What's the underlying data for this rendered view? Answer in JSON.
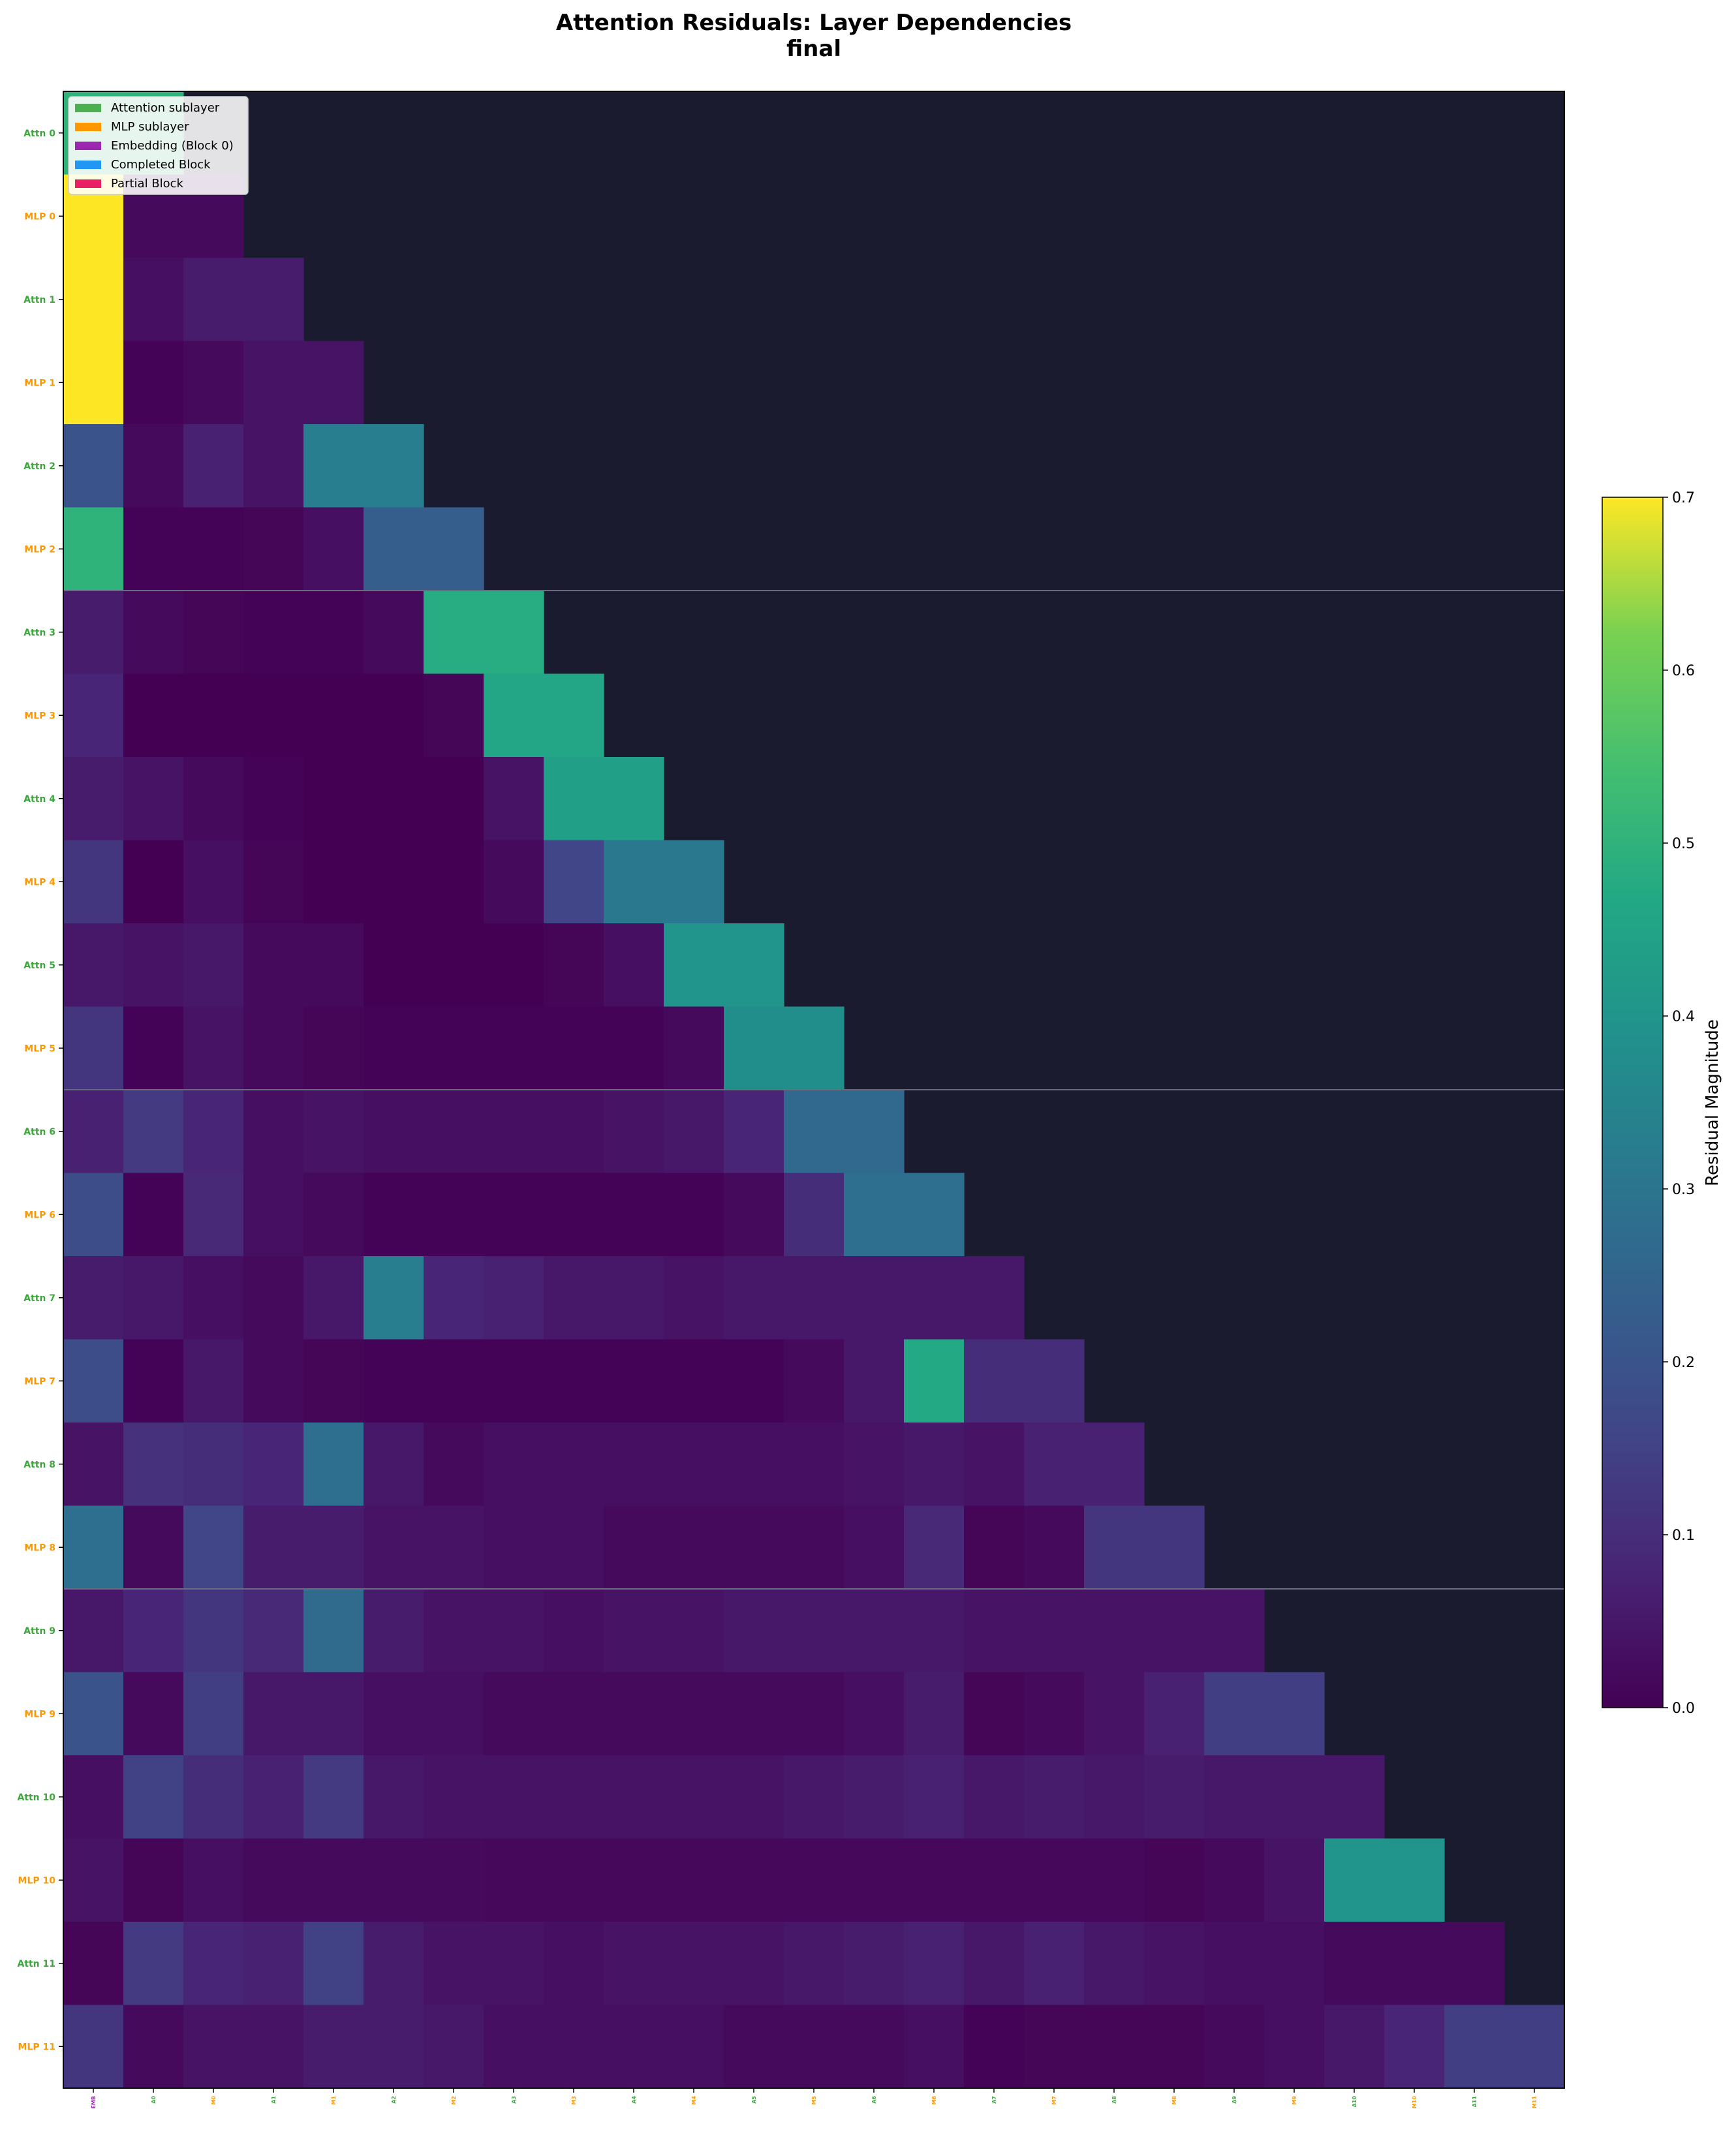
{
  "chart_data": {
    "type": "heatmap",
    "title": "Attention Residuals: Layer Dependencies",
    "subtitle": "final",
    "colorbar": {
      "label": "Residual Magnitude",
      "min": 0.0,
      "max": 0.7,
      "ticks": [
        "0.0",
        "0.1",
        "0.2",
        "0.3",
        "0.4",
        "0.5",
        "0.6",
        "0.7"
      ],
      "colormap": "viridis"
    },
    "background_color": "#1b1b2f",
    "block_boundaries_after_row": [
      5,
      11,
      17
    ],
    "colors": {
      "attention": "#3ca83c",
      "mlp": "#ff9800",
      "embedding": "#9c27b0"
    },
    "legend": [
      {
        "label": "Attention sublayer",
        "color": "#4caf50"
      },
      {
        "label": "MLP sublayer",
        "color": "#ff9800"
      },
      {
        "label": "Embedding (Block 0)",
        "color": "#9c27b0"
      },
      {
        "label": "Completed Block",
        "color": "#2196f3"
      },
      {
        "label": "Partial Block",
        "color": "#e91e63"
      }
    ],
    "y_labels": [
      "Attn 0",
      "MLP 0",
      "Attn 1",
      "MLP 1",
      "Attn 2",
      "MLP 2",
      "Attn 3",
      "MLP 3",
      "Attn 4",
      "MLP 4",
      "Attn 5",
      "MLP 5",
      "Attn 6",
      "MLP 6",
      "Attn 7",
      "MLP 7",
      "Attn 8",
      "MLP 8",
      "Attn 9",
      "MLP 9",
      "Attn 10",
      "MLP 10",
      "Attn 11",
      "MLP 11"
    ],
    "x_labels": [
      "EMB",
      "A0",
      "M0",
      "A1",
      "M1",
      "A2",
      "M2",
      "A3",
      "M3",
      "A4",
      "M4",
      "A5",
      "M5",
      "A6",
      "M6",
      "A7",
      "M7",
      "A8",
      "M8",
      "A9",
      "M9",
      "A10",
      "M10",
      "A11",
      "M11"
    ],
    "rows": [
      [
        0.5,
        0.5
      ],
      [
        0.7,
        0.02,
        0.02
      ],
      [
        0.7,
        0.03,
        0.06,
        0.06
      ],
      [
        0.7,
        0.005,
        0.02,
        0.04,
        0.04
      ],
      [
        0.2,
        0.02,
        0.07,
        0.04,
        0.33,
        0.33
      ],
      [
        0.5,
        0.005,
        0.005,
        0.01,
        0.03,
        0.23,
        0.23
      ],
      [
        0.06,
        0.02,
        0.01,
        0.005,
        0.005,
        0.02,
        0.48,
        0.48
      ],
      [
        0.08,
        0.0,
        0.0,
        0.0,
        0.0,
        0.0,
        0.01,
        0.46,
        0.46
      ],
      [
        0.06,
        0.04,
        0.02,
        0.005,
        0.0,
        0.0,
        0.0,
        0.04,
        0.44,
        0.44
      ],
      [
        0.12,
        0.0,
        0.03,
        0.01,
        0.0,
        0.0,
        0.0,
        0.02,
        0.16,
        0.31,
        0.31
      ],
      [
        0.05,
        0.04,
        0.05,
        0.02,
        0.02,
        0.0,
        0.0,
        0.0,
        0.01,
        0.03,
        0.4,
        0.4
      ],
      [
        0.12,
        0.005,
        0.04,
        0.02,
        0.01,
        0.005,
        0.005,
        0.005,
        0.005,
        0.005,
        0.02,
        0.38,
        0.38
      ],
      [
        0.07,
        0.13,
        0.08,
        0.03,
        0.04,
        0.03,
        0.03,
        0.03,
        0.03,
        0.04,
        0.05,
        0.08,
        0.26,
        0.26
      ],
      [
        0.18,
        0.005,
        0.09,
        0.03,
        0.02,
        0.005,
        0.005,
        0.005,
        0.005,
        0.005,
        0.005,
        0.02,
        0.1,
        0.28,
        0.28
      ],
      [
        0.06,
        0.05,
        0.03,
        0.02,
        0.05,
        0.33,
        0.08,
        0.07,
        0.05,
        0.05,
        0.04,
        0.05,
        0.05,
        0.05,
        0.05,
        0.05
      ],
      [
        0.18,
        0.005,
        0.05,
        0.02,
        0.01,
        0.005,
        0.005,
        0.005,
        0.005,
        0.005,
        0.005,
        0.005,
        0.02,
        0.05,
        0.47,
        0.1,
        0.1
      ],
      [
        0.04,
        0.11,
        0.1,
        0.08,
        0.28,
        0.05,
        0.02,
        0.03,
        0.03,
        0.03,
        0.03,
        0.03,
        0.03,
        0.04,
        0.05,
        0.04,
        0.07,
        0.07
      ],
      [
        0.28,
        0.02,
        0.16,
        0.06,
        0.06,
        0.04,
        0.04,
        0.03,
        0.03,
        0.02,
        0.02,
        0.02,
        0.02,
        0.03,
        0.09,
        0.01,
        0.02,
        0.12,
        0.12
      ],
      [
        0.05,
        0.08,
        0.12,
        0.09,
        0.27,
        0.06,
        0.04,
        0.04,
        0.03,
        0.04,
        0.04,
        0.05,
        0.05,
        0.05,
        0.05,
        0.04,
        0.04,
        0.04,
        0.04,
        0.04
      ],
      [
        0.2,
        0.02,
        0.14,
        0.05,
        0.05,
        0.03,
        0.03,
        0.02,
        0.02,
        0.02,
        0.02,
        0.02,
        0.02,
        0.03,
        0.06,
        0.01,
        0.02,
        0.04,
        0.07,
        0.14,
        0.14
      ],
      [
        0.03,
        0.15,
        0.1,
        0.07,
        0.13,
        0.05,
        0.04,
        0.04,
        0.04,
        0.04,
        0.04,
        0.04,
        0.05,
        0.06,
        0.07,
        0.05,
        0.06,
        0.05,
        0.06,
        0.05,
        0.05,
        0.05
      ],
      [
        0.04,
        0.01,
        0.03,
        0.02,
        0.02,
        0.02,
        0.02,
        0.015,
        0.015,
        0.015,
        0.015,
        0.015,
        0.015,
        0.015,
        0.015,
        0.015,
        0.015,
        0.015,
        0.01,
        0.02,
        0.04,
        0.4,
        0.4
      ],
      [
        0.01,
        0.13,
        0.08,
        0.07,
        0.15,
        0.06,
        0.04,
        0.04,
        0.03,
        0.04,
        0.04,
        0.04,
        0.05,
        0.06,
        0.07,
        0.05,
        0.07,
        0.05,
        0.04,
        0.03,
        0.03,
        0.02,
        0.02,
        0.02
      ],
      [
        0.12,
        0.02,
        0.04,
        0.04,
        0.06,
        0.06,
        0.05,
        0.03,
        0.03,
        0.03,
        0.03,
        0.02,
        0.02,
        0.02,
        0.03,
        0.005,
        0.01,
        0.01,
        0.01,
        0.02,
        0.03,
        0.05,
        0.08,
        0.14,
        0.14
      ]
    ]
  }
}
